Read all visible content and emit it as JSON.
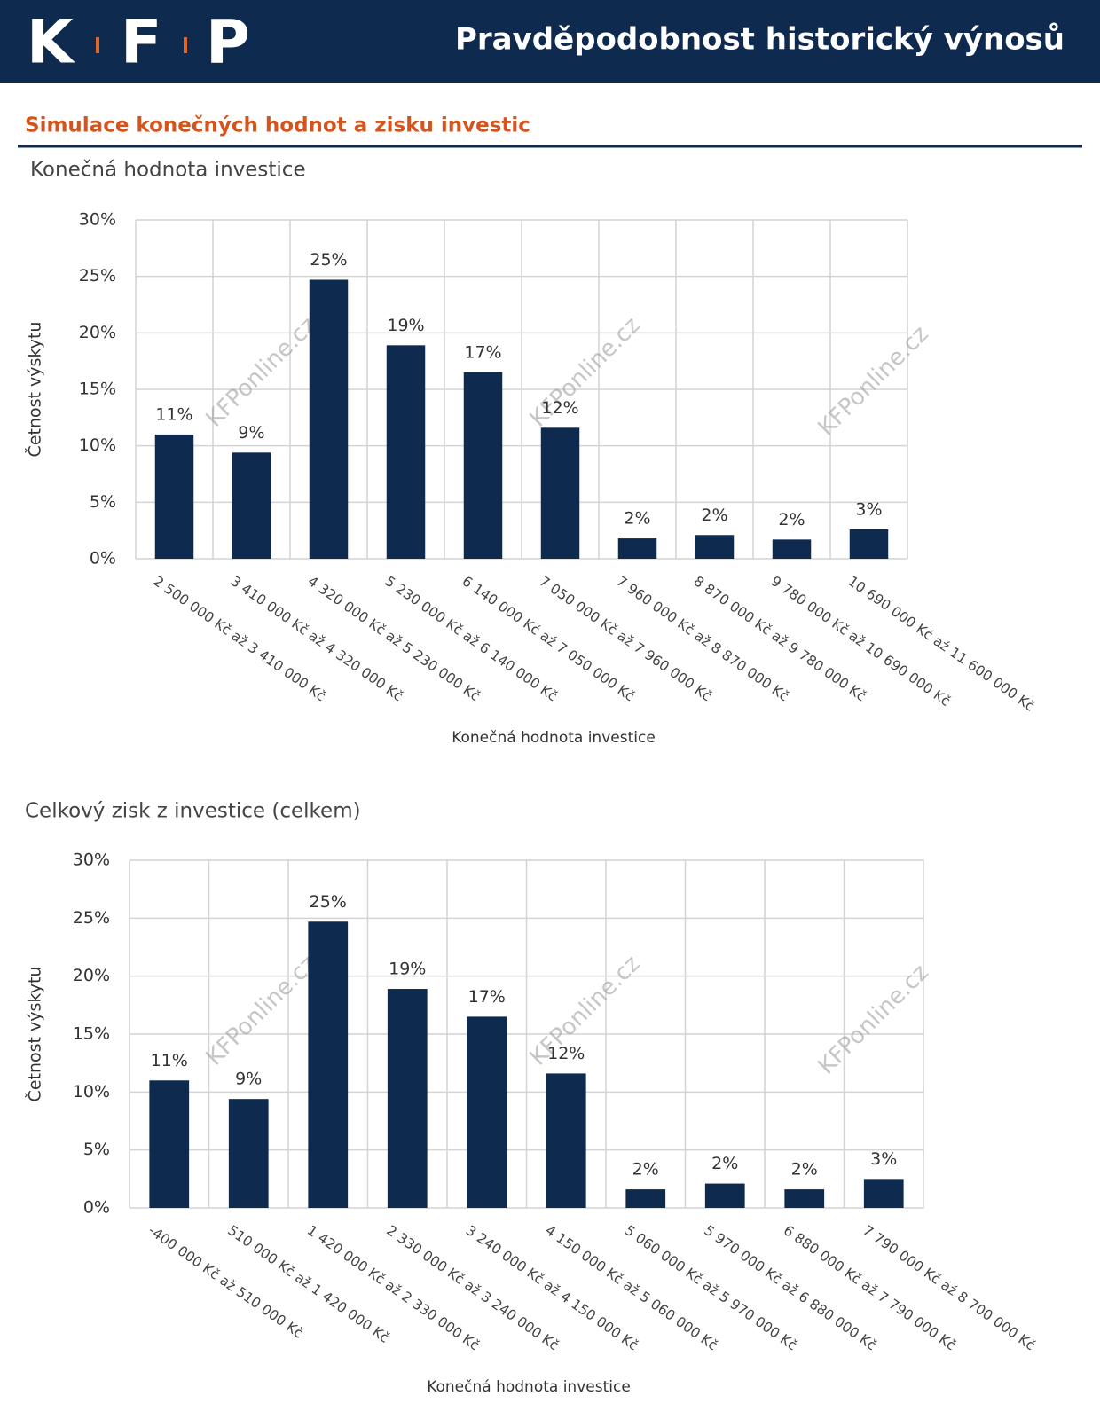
{
  "header": {
    "logo": [
      "K",
      "F",
      "P"
    ],
    "title": "Pravděpodobnost historický výnosů"
  },
  "section_title": "Simulace konečných hodnot a zisku investic",
  "watermark": "KFPonline.cz",
  "chart_data": [
    {
      "type": "bar",
      "title": "Konečná hodnota investice",
      "x_label": "Konečná hodnota investice",
      "y_label": "Četnost výskytu",
      "categories": [
        "2 500 000 Kč až 3 410 000 Kč",
        "3 410 000 Kč až 4 320 000 Kč",
        "4 320 000 Kč až 5 230 000 Kč",
        "5 230 000 Kč až 6 140 000 Kč",
        "6 140 000 Kč až 7 050 000 Kč",
        "7 050 000 Kč až 7 960 000 Kč",
        "7 960 000 Kč až 8 870 000 Kč",
        "8 870 000 Kč až 9 780 000 Kč",
        "9 780 000 Kč až 10 690 000 Kč",
        "10 690 000 Kč až 11 600 000 Kč"
      ],
      "values": [
        11.0,
        9.4,
        24.7,
        18.9,
        16.5,
        11.6,
        1.8,
        2.1,
        1.7,
        2.6
      ],
      "value_labels": [
        "11%",
        "9%",
        "25%",
        "19%",
        "17%",
        "12%",
        "2%",
        "2%",
        "2%",
        "3%"
      ],
      "color": "#0e2a4f",
      "ylim": [
        0,
        30
      ],
      "yticks": [
        {
          "value": 0,
          "label": "0%"
        },
        {
          "value": 5,
          "label": "5%"
        },
        {
          "value": 10,
          "label": "10%"
        },
        {
          "value": 15,
          "label": "15%"
        },
        {
          "value": 20,
          "label": "20%"
        },
        {
          "value": 25,
          "label": "25%"
        },
        {
          "value": 30,
          "label": "30%"
        }
      ],
      "grid": true
    },
    {
      "type": "bar",
      "title": "Celkový zisk z investice (celkem)",
      "x_label": "Konečná hodnota investice",
      "y_label": "Četnost výskytu",
      "categories": [
        "-400 000 Kč až 510 000 Kč",
        "510 000 Kč až 1 420 000 Kč",
        "1 420 000 Kč až 2 330 000 Kč",
        "2 330 000 Kč až 3 240 000 Kč",
        "3 240 000 Kč až 4 150 000 Kč",
        "4 150 000 Kč až 5 060 000 Kč",
        "5 060 000 Kč až 5 970 000 Kč",
        "5 970 000 Kč až 6 880 000 Kč",
        "6 880 000 Kč až 7 790 000 Kč",
        "7 790 000 Kč až 8 700 000 Kč"
      ],
      "values": [
        11.0,
        9.4,
        24.7,
        18.9,
        16.5,
        11.6,
        1.6,
        2.1,
        1.6,
        2.5
      ],
      "value_labels": [
        "11%",
        "9%",
        "25%",
        "19%",
        "17%",
        "12%",
        "2%",
        "2%",
        "2%",
        "3%"
      ],
      "color": "#0e2a4f",
      "ylim": [
        0,
        30
      ],
      "yticks": [
        {
          "value": 0,
          "label": "0%"
        },
        {
          "value": 5,
          "label": "5%"
        },
        {
          "value": 10,
          "label": "10%"
        },
        {
          "value": 15,
          "label": "15%"
        },
        {
          "value": 20,
          "label": "20%"
        },
        {
          "value": 25,
          "label": "25%"
        },
        {
          "value": 30,
          "label": "30%"
        }
      ],
      "grid": true
    }
  ]
}
